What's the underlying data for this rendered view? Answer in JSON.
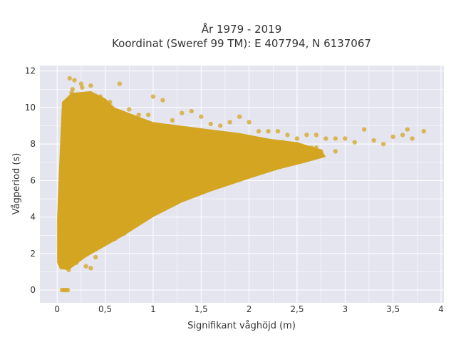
{
  "chart_data": {
    "type": "scatter",
    "title_lines": [
      "År 1979 - 2019",
      "Koordinat (Sweref 99 TM): E 407794, N 6137067"
    ],
    "xlabel": "Signifikant våghöjd (m)",
    "ylabel": "Vågperiod (s)",
    "xlim": [
      -0.18,
      4.03
    ],
    "ylim": [
      -0.7,
      12.3
    ],
    "x_ticks": [
      0,
      0.5,
      1,
      1.5,
      2,
      2.5,
      3,
      3.5,
      4
    ],
    "x_tick_labels": [
      "0",
      "0,5",
      "1",
      "1,5",
      "2",
      "2,5",
      "3",
      "3,5",
      "4"
    ],
    "y_ticks": [
      0,
      2,
      4,
      6,
      8,
      10,
      12
    ],
    "y_tick_labels": [
      "0",
      "2",
      "4",
      "6",
      "8",
      "10",
      "12"
    ],
    "grid": true,
    "colors": {
      "plot_background": "#e5e5f0",
      "grid": "#ffffff",
      "marker": "#d4a521"
    },
    "marker_opacity": 0.75,
    "series": [
      {
        "x": [
          0.05,
          0.07,
          0.09,
          0.11,
          0.1,
          0.05,
          0.06,
          0.12,
          0.2,
          0.3,
          0.4,
          0.5,
          0.6,
          0.7,
          0.08,
          0.1,
          0.15,
          0.18,
          0.25,
          0.35,
          0.45,
          0.55,
          0.65,
          0.75,
          0.85,
          0.95,
          1.0,
          1.1,
          1.2,
          1.3,
          1.4,
          1.5,
          1.6,
          1.7,
          1.8,
          1.9,
          2.0,
          2.1,
          2.2,
          2.3,
          2.4,
          2.5,
          2.6,
          2.7,
          2.8,
          2.9,
          3.0,
          3.1,
          3.2,
          3.3,
          3.4,
          3.5,
          3.6,
          3.65,
          3.7,
          3.82,
          0.2,
          0.25,
          0.3,
          0.35,
          0.4,
          0.45,
          0.5,
          0.55,
          0.6,
          0.7,
          0.8,
          0.9,
          1.0,
          1.1,
          1.2,
          1.3,
          1.4,
          1.5,
          1.6,
          1.7,
          1.8,
          1.9,
          2.0,
          2.1,
          2.2,
          2.3,
          2.4,
          2.5,
          2.7,
          2.9,
          0.15,
          0.2,
          0.3,
          0.4,
          0.5,
          0.6,
          0.7,
          0.8,
          0.3,
          0.35,
          0.4,
          0.12,
          0.17,
          0.22,
          0.28,
          0.33,
          0.38,
          0.43,
          0.48,
          0.53,
          0.58,
          0.63,
          0.68,
          0.73,
          0.78,
          0.83,
          0.88,
          0.93,
          0.98,
          1.05,
          1.15,
          1.25,
          1.35,
          1.45,
          1.55,
          1.65,
          1.75,
          1.85,
          1.95,
          2.05,
          2.15,
          2.25,
          2.35,
          2.45,
          2.55,
          2.65,
          2.75,
          0.13,
          0.16,
          0.26
        ],
        "y": [
          0,
          0,
          0,
          0,
          1.5,
          1.7,
          2.0,
          1.1,
          1.5,
          2.0,
          2.3,
          2.6,
          2.8,
          3.1,
          9.5,
          10.2,
          10.8,
          11.5,
          11.3,
          11.2,
          10.6,
          10.3,
          11.3,
          9.9,
          9.6,
          9.6,
          10.6,
          10.4,
          9.3,
          9.7,
          9.8,
          9.5,
          9.1,
          9.0,
          9.2,
          9.5,
          9.2,
          8.7,
          8.7,
          8.7,
          8.5,
          8.3,
          8.5,
          8.5,
          8.3,
          8.3,
          8.3,
          8.1,
          8.8,
          8.2,
          8.0,
          8.4,
          8.5,
          8.8,
          8.3,
          8.7,
          8.5,
          9.0,
          9.2,
          9.3,
          9.6,
          9.4,
          9.7,
          9.5,
          9.6,
          9.0,
          8.9,
          8.8,
          8.7,
          8.7,
          8.6,
          8.6,
          8.5,
          8.5,
          8.4,
          8.4,
          8.3,
          8.3,
          8.2,
          8.2,
          8.1,
          8.1,
          8.0,
          8.0,
          7.8,
          7.6,
          3.0,
          3.5,
          4.0,
          4.5,
          5.0,
          5.3,
          5.6,
          6.0,
          1.3,
          1.2,
          1.8,
          5.0,
          6.0,
          7.0,
          7.5,
          7.5,
          7.2,
          7.0,
          6.8,
          6.5,
          6.5,
          6.8,
          7.0,
          7.2,
          7.0,
          7.3,
          7.4,
          7.5,
          7.6,
          7.6,
          7.5,
          7.6,
          7.7,
          7.5,
          7.3,
          7.4,
          7.5,
          7.6,
          7.7,
          7.8,
          7.9,
          8.0,
          8.1,
          8.0,
          7.9,
          7.8,
          7.6,
          11.6,
          11.0,
          11.1
        ]
      }
    ]
  }
}
